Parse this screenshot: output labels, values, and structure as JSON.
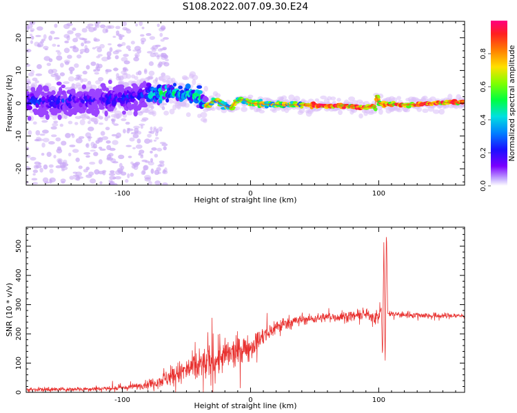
{
  "title": "S108.2022.007.09.30.E24",
  "colors": {
    "snr_line": "#e8302e",
    "background": "#ffffff",
    "axis": "#000000"
  },
  "chart_data": [
    {
      "type": "heatmap",
      "name": "spectrogram",
      "xlabel": "Height of straight line (km)",
      "ylabel": "Frequency (Hz)",
      "xlim": [
        -175,
        167
      ],
      "ylim": [
        -25,
        25
      ],
      "x_ticks": [
        -100,
        0,
        100
      ],
      "x_tick_labels": [
        "-100",
        "0",
        "100"
      ],
      "y_ticks": [
        -20,
        -10,
        0,
        10,
        20
      ],
      "y_tick_labels": [
        "-20",
        "-10",
        "0",
        "10",
        "20"
      ],
      "colormap": "rainbow (purple to red)",
      "colorbar": {
        "label": "Normalized spectral amplitude",
        "range": [
          0,
          1
        ],
        "ticks": [
          0.0,
          0.2,
          0.4,
          0.6,
          0.8
        ],
        "tick_labels": [
          "0.0",
          "0.2",
          "0.4",
          "0.6",
          "0.8"
        ]
      },
      "ridge": {
        "x": [
          -175,
          -150,
          -125,
          -100,
          -80,
          -65,
          -55,
          -45,
          -40,
          -35,
          -30,
          -27,
          -24,
          -20,
          -15,
          -12,
          -8,
          -5,
          0,
          10,
          25,
          40,
          55,
          70,
          80,
          85,
          90,
          95,
          97,
          98,
          100,
          105,
          110,
          120,
          130,
          140,
          150,
          160,
          167
        ],
        "freq": [
          0.5,
          0.5,
          0.8,
          1.5,
          2.5,
          3.2,
          3.0,
          2.8,
          2.0,
          -1.0,
          0.5,
          1.0,
          0.0,
          -0.8,
          -1.5,
          0.5,
          1.0,
          1.0,
          0.0,
          -0.3,
          -0.5,
          -0.5,
          -0.8,
          -0.8,
          -1.0,
          -1.3,
          -1.2,
          -0.8,
          -1.5,
          2.5,
          0.0,
          -0.5,
          -0.3,
          -0.5,
          -0.3,
          0.0,
          0.2,
          0.2,
          0.2
        ]
      }
    },
    {
      "type": "line",
      "name": "snr",
      "xlabel": "Height of straight line (km)",
      "ylabel": "SNR (10 * v/v)",
      "xlim": [
        -175,
        167
      ],
      "ylim": [
        0,
        565
      ],
      "x_ticks": [
        -100,
        0,
        100
      ],
      "x_tick_labels": [
        "-100",
        "0",
        "100"
      ],
      "y_ticks": [
        0,
        100,
        200,
        300,
        400,
        500
      ],
      "y_tick_labels": [
        "0",
        "100",
        "200",
        "300",
        "400",
        "500"
      ],
      "trend": {
        "x": [
          -175,
          -150,
          -125,
          -100,
          -90,
          -80,
          -70,
          -60,
          -50,
          -40,
          -30,
          -20,
          -10,
          0,
          10,
          20,
          30,
          40,
          50,
          60,
          70,
          80,
          90,
          95,
          100,
          102,
          103,
          104,
          105,
          106,
          107,
          110,
          120,
          130,
          140,
          150,
          160,
          167
        ],
        "y": [
          10,
          10,
          12,
          15,
          20,
          28,
          40,
          60,
          75,
          90,
          105,
          125,
          140,
          155,
          190,
          225,
          240,
          248,
          252,
          258,
          258,
          262,
          265,
          262,
          255,
          290,
          110,
          530,
          80,
          560,
          270,
          268,
          265,
          265,
          262,
          262,
          262,
          262
        ]
      },
      "noise_amplitude": {
        "x": [
          -175,
          -100,
          -80,
          -60,
          -40,
          -30,
          -20,
          0,
          20,
          40,
          90,
          100,
          110,
          167
        ],
        "amp": [
          5,
          6,
          10,
          25,
          40,
          45,
          40,
          30,
          20,
          12,
          12,
          20,
          8,
          7
        ]
      },
      "spikes": [
        {
          "x": -30,
          "y": 255
        },
        {
          "x": -24,
          "y": 200
        },
        {
          "x": -40,
          "y": 150
        }
      ]
    }
  ]
}
